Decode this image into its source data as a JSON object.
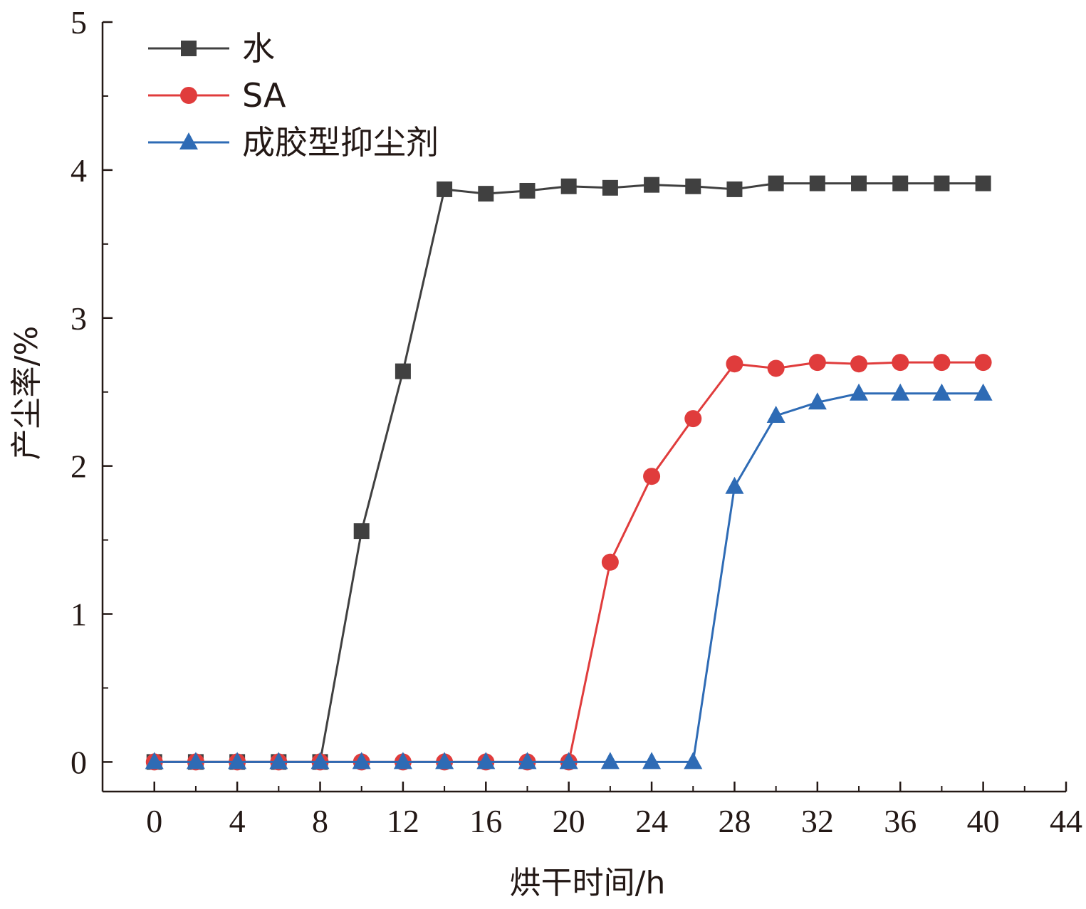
{
  "chart_data": {
    "type": "line",
    "title": "",
    "xlabel": "烘干时间/h",
    "ylabel": "产尘率/%",
    "xlim": [
      -2.5,
      44
    ],
    "ylim": [
      -0.2,
      5
    ],
    "x_ticks": [
      "0",
      "4",
      "8",
      "12",
      "16",
      "20",
      "24",
      "28",
      "32",
      "36",
      "40",
      "44"
    ],
    "y_ticks": [
      "0",
      "1",
      "2",
      "3",
      "4",
      "5"
    ],
    "x": [
      0,
      2,
      4,
      6,
      8,
      10,
      12,
      14,
      16,
      18,
      20,
      22,
      24,
      26,
      28,
      30,
      32,
      34,
      36,
      38,
      40
    ],
    "grid": false,
    "legend_position": "top-left",
    "series": [
      {
        "name": "水",
        "color": "#404040",
        "marker": "square",
        "values": [
          0,
          0,
          0,
          0,
          0,
          1.56,
          2.64,
          3.87,
          3.84,
          3.86,
          3.89,
          3.88,
          3.9,
          3.89,
          3.87,
          3.91,
          3.91,
          3.91,
          3.91,
          3.91,
          3.91
        ]
      },
      {
        "name": "SA",
        "color": "#e03c3c",
        "marker": "circle",
        "values": [
          0,
          0,
          0,
          0,
          0,
          0,
          0,
          0,
          0,
          0,
          0,
          1.35,
          1.93,
          2.32,
          2.69,
          2.66,
          2.7,
          2.69,
          2.7,
          2.7,
          2.7
        ]
      },
      {
        "name": "成胶型抑尘剂",
        "color": "#2e6bb5",
        "marker": "triangle",
        "values": [
          0,
          0,
          0,
          0,
          0,
          0,
          0,
          0,
          0,
          0,
          0,
          0,
          0,
          0,
          1.86,
          2.34,
          2.43,
          2.49,
          2.49,
          2.49,
          2.49
        ]
      }
    ]
  }
}
